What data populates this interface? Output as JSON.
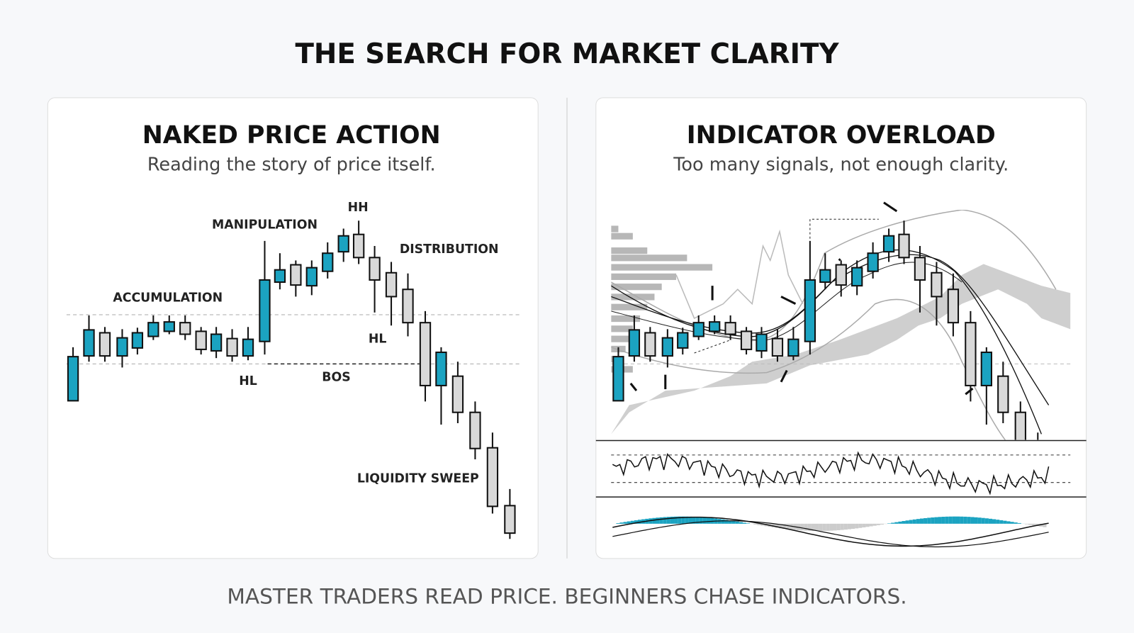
{
  "header": {
    "title": "THE SEARCH FOR MARKET CLARITY"
  },
  "panels": [
    {
      "title": "NAKED PRICE ACTION",
      "subtitle": "Reading the story of price itself.",
      "labels": [
        "ACCUMULATION",
        "MANIPULATION",
        "HH",
        "DISTRIBUTION",
        "HL",
        "HL",
        "BOS",
        "LIQUIDITY SWEEP"
      ]
    },
    {
      "title": "INDICATOR OVERLOAD",
      "subtitle": "Too many signals, not enough clarity."
    }
  ],
  "footer": {
    "text": "MASTER TRADERS READ PRICE. BEGINNERS CHASE INDICATORS."
  }
}
